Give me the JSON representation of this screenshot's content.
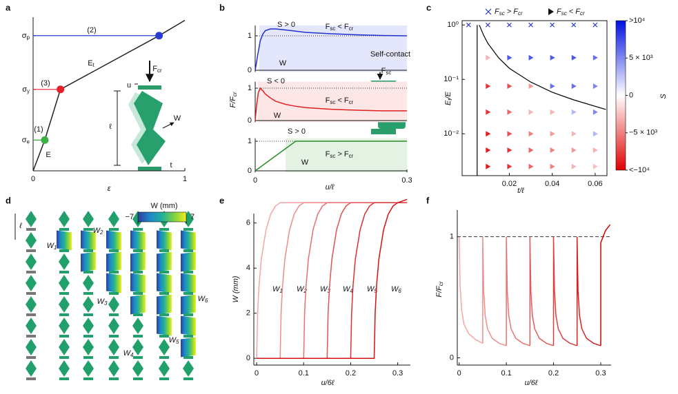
{
  "chart_data": [
    {
      "label": "a",
      "type": "line",
      "xlabel": "ε",
      "xlim": [
        0,
        1
      ],
      "ylim": [
        0,
        1
      ],
      "xticks": [
        0,
        1
      ],
      "yticks": [
        {
          "value": 0.2,
          "label": [
            {
              "text": "σ",
              "sub": "e"
            }
          ]
        },
        {
          "value": 0.53,
          "label": [
            {
              "text": "σ",
              "sub": "y"
            }
          ]
        },
        {
          "value": 0.88,
          "label": [
            {
              "text": "σ",
              "sub": "p"
            }
          ]
        }
      ],
      "series": [
        {
          "color": "#222222",
          "x": [
            0,
            0.077,
            0.18,
            0.83,
            1
          ],
          "values": [
            0,
            0.2,
            0.53,
            0.88,
            0.98
          ]
        }
      ],
      "points": [
        {
          "x": 0.077,
          "y": 0.2,
          "color": "#3cb043"
        },
        {
          "x": 0.18,
          "y": 0.53,
          "color": "#e8202a"
        },
        {
          "x": 0.83,
          "y": 0.88,
          "color": "#2a3bd6"
        }
      ],
      "annotations": [
        "(1)",
        "(2)",
        "(3)",
        "E",
        [
          {
            "text": "E",
            "sub": "t"
          }
        ],
        [
          {
            "text": "F",
            "sub": "cr"
          }
        ],
        "u",
        "ℓ",
        "W",
        "t"
      ]
    },
    {
      "label": "b",
      "type": "line",
      "xlim": [
        0,
        0.3
      ],
      "ylim": [
        -0.05,
        1.3
      ],
      "yticks": [
        0,
        1
      ],
      "hline": 1,
      "region": [
        0.008,
        0.3
      ],
      "region_color": "#e4e7fb",
      "series": [
        {
          "color": "#1f2fd0",
          "x": [
            0,
            0.005,
            0.01,
            0.015,
            0.02,
            0.03,
            0.04,
            0.06,
            0.1,
            0.15,
            0.2,
            0.25,
            0.3
          ],
          "values": [
            0,
            0.45,
            0.85,
            1.05,
            1.15,
            1.2,
            1.2,
            1.17,
            1.1,
            1.06,
            1.03,
            1.01,
            1.0
          ]
        }
      ],
      "annotations": [
        "S > 0",
        [
          {
            "text": "F",
            "sub": "sc"
          },
          {
            "text": " < F",
            "sub": "cr"
          }
        ],
        "W"
      ]
    },
    {
      "type": "line",
      "xlim": [
        0,
        0.3
      ],
      "ylim": [
        -0.05,
        1.2
      ],
      "yticks": [
        0,
        1
      ],
      "hline": 1,
      "region": [
        0.005,
        0.3
      ],
      "region_color": "#fde6e6",
      "ylabel": [
        {
          "text": "F/F",
          "sub": "cr"
        }
      ],
      "series": [
        {
          "color": "#e02020",
          "x": [
            0,
            0.003,
            0.006,
            0.01,
            0.015,
            0.02,
            0.03,
            0.04,
            0.06,
            0.08,
            0.1,
            0.15,
            0.2,
            0.25,
            0.3
          ],
          "values": [
            0,
            0.5,
            0.85,
            1.0,
            0.92,
            0.82,
            0.7,
            0.6,
            0.5,
            0.44,
            0.4,
            0.35,
            0.32,
            0.3,
            0.3
          ]
        }
      ],
      "annotations": [
        "S < 0",
        [
          {
            "text": "F",
            "sub": "sc"
          },
          {
            "text": " < F",
            "sub": "cr"
          }
        ],
        "W",
        "Self-contact",
        [
          {
            "text": "F",
            "sub": "sc"
          }
        ]
      ]
    },
    {
      "type": "line",
      "xlim": [
        0,
        0.3
      ],
      "ylim": [
        -0.05,
        1.1
      ],
      "yticks": [
        0,
        1
      ],
      "xticks": [
        0,
        0.3
      ],
      "xlabel": "u/ℓ",
      "hline": 1,
      "region": [
        0.06,
        0.3
      ],
      "region_color": "#e3f2e3",
      "series": [
        {
          "color": "#2a8a2a",
          "x": [
            0,
            0.08,
            0.1,
            0.2,
            0.3
          ],
          "values": [
            0,
            1,
            1,
            1,
            1
          ]
        }
      ],
      "annotations": [
        "S > 0",
        [
          {
            "text": "F",
            "sub": "sc"
          },
          {
            "text": " > F",
            "sub": "cr"
          }
        ],
        "W"
      ]
    },
    {
      "label": "c",
      "type": "scatter",
      "ylog": true,
      "xlabel": "t/ℓ",
      "ylabel": [
        {
          "text": "E",
          "sub": "t"
        },
        {
          "text": "/E"
        }
      ],
      "xlim": [
        -0.002,
        0.0655
      ],
      "ylim": [
        0.0017,
        1.2
      ],
      "xticks": [
        0.02,
        0.04,
        0.06
      ],
      "yticks": [
        {
          "value": 1,
          "label": "10⁰"
        },
        {
          "value": 0.1,
          "label": "10⁻¹"
        },
        {
          "value": 0.01,
          "label": "10⁻²"
        }
      ],
      "series": [
        {
          "name": [
            {
              "text": "F",
              "sub": "sc"
            },
            {
              "text": " > F",
              "sub": "cr"
            }
          ],
          "marker": "x",
          "color": "#2233cc",
          "x": [
            0.001,
            0.01,
            0.02,
            0.03,
            0.04,
            0.05,
            0.06
          ],
          "values": [
            1,
            1,
            1,
            1,
            1,
            1,
            1
          ]
        },
        {
          "name": [
            {
              "text": "F",
              "sub": "sc"
            },
            {
              "text": " < F",
              "sub": "cr"
            }
          ],
          "marker": "triangle",
          "color": "#111111",
          "x": [
            0.01,
            0.02,
            0.03,
            0.04,
            0.05,
            0.06,
            0.01,
            0.02,
            0.03,
            0.04,
            0.05,
            0.06,
            0.01,
            0.02,
            0.03,
            0.04,
            0.05,
            0.06,
            0.01,
            0.02,
            0.03,
            0.04,
            0.05,
            0.06,
            0.01,
            0.02,
            0.03,
            0.04,
            0.05,
            0.06,
            0.01,
            0.02,
            0.03,
            0.04,
            0.05,
            0.06
          ],
          "values": [
            0.25,
            0.25,
            0.25,
            0.25,
            0.25,
            0.25,
            0.075,
            0.075,
            0.075,
            0.075,
            0.075,
            0.075,
            0.025,
            0.025,
            0.025,
            0.025,
            0.025,
            0.025,
            0.01,
            0.01,
            0.01,
            0.01,
            0.01,
            0.01,
            0.005,
            0.005,
            0.005,
            0.005,
            0.005,
            0.005,
            0.0025,
            0.0025,
            0.0025,
            0.0025,
            0.0025,
            0.0025
          ],
          "S": [
            -3000,
            7000,
            7000,
            7000,
            7000,
            6000,
            -8000,
            -7000,
            -4000,
            6000,
            6000,
            5000,
            -8000,
            -6000,
            -3000,
            -3000,
            3000,
            5000,
            -9000,
            -7000,
            -5000,
            -4000,
            -3000,
            3000,
            -9000,
            -8000,
            -6000,
            -5000,
            -4000,
            -3000,
            -9000,
            -8000,
            -6000,
            -5000,
            -3000,
            -2500
          ]
        }
      ],
      "curves": [
        {
          "color": "#000000",
          "x": [
            0.006,
            0.008,
            0.01,
            0.015,
            0.02,
            0.03,
            0.04,
            0.05,
            0.065
          ],
          "values": [
            1,
            0.65,
            0.46,
            0.25,
            0.16,
            0.089,
            0.058,
            0.042,
            0.028
          ]
        },
        {
          "color": "#000000",
          "x": [
            0.005,
            0.005
          ],
          "values": [
            0.0017,
            1
          ]
        }
      ],
      "colorbar": {
        "label": "S",
        "clim": [
          -10000,
          10000
        ],
        "colors": [
          "#e00000",
          "#ffffff",
          "#0010e0"
        ],
        "ticks": [
          {
            "value": 10000,
            "label": ">10⁴"
          },
          {
            "value": 5000,
            "label": "5 × 10³"
          },
          0,
          {
            "value": -5000,
            "label": "−5 × 10³"
          },
          {
            "value": -10000,
            "label": "<−10⁴"
          }
        ]
      }
    },
    {
      "label": "e",
      "type": "line",
      "xlabel": "u/6ℓ",
      "ylabel": "W (mm)",
      "xlim": [
        -0.006,
        0.327
      ],
      "ylim": [
        -0.3,
        6.42
      ],
      "xticks": [
        0,
        0.1,
        0.2,
        0.3
      ],
      "yticks": [
        0,
        2,
        4,
        6
      ],
      "series": [
        {
          "name": [
            {
              "text": "W",
              "sub": "1"
            }
          ],
          "color": "#f4a6a6",
          "x": [
            0,
            0.002,
            0.005,
            0.01,
            0.02,
            0.03,
            0.04,
            0.05,
            0.32
          ],
          "values": [
            0,
            2.0,
            3.2,
            4.4,
            5.7,
            6.4,
            6.75,
            6.9,
            6.9
          ]
        },
        {
          "name": [
            {
              "text": "W",
              "sub": "2"
            }
          ],
          "color": "#ef8a8a",
          "x": [
            0,
            0.05,
            0.052,
            0.055,
            0.06,
            0.07,
            0.08,
            0.09,
            0.1,
            0.32
          ],
          "values": [
            0,
            0,
            2.0,
            3.2,
            4.4,
            5.7,
            6.4,
            6.75,
            6.9,
            6.9
          ]
        },
        {
          "name": [
            {
              "text": "W",
              "sub": "3"
            }
          ],
          "color": "#e96e6e",
          "x": [
            0,
            0.1,
            0.102,
            0.105,
            0.11,
            0.12,
            0.13,
            0.14,
            0.15,
            0.32
          ],
          "values": [
            0,
            0,
            2.0,
            3.2,
            4.4,
            5.7,
            6.4,
            6.75,
            6.9,
            6.9
          ]
        },
        {
          "name": [
            {
              "text": "W",
              "sub": "4"
            }
          ],
          "color": "#e35050",
          "x": [
            0,
            0.15,
            0.152,
            0.155,
            0.16,
            0.17,
            0.18,
            0.19,
            0.2,
            0.32
          ],
          "values": [
            0,
            0,
            2.0,
            3.2,
            4.4,
            5.7,
            6.4,
            6.75,
            6.9,
            6.9
          ]
        },
        {
          "name": [
            {
              "text": "W",
              "sub": "5"
            }
          ],
          "color": "#dc3030",
          "x": [
            0,
            0.2,
            0.202,
            0.205,
            0.21,
            0.22,
            0.23,
            0.24,
            0.25,
            0.32
          ],
          "values": [
            0,
            0,
            2.0,
            3.2,
            4.4,
            5.7,
            6.4,
            6.75,
            6.9,
            6.9
          ]
        },
        {
          "name": [
            {
              "text": "W",
              "sub": "6"
            }
          ],
          "color": "#d41010",
          "x": [
            0,
            0.25,
            0.252,
            0.255,
            0.26,
            0.27,
            0.28,
            0.29,
            0.3,
            0.32
          ],
          "values": [
            0,
            0,
            2.0,
            3.2,
            4.4,
            5.7,
            6.4,
            6.75,
            6.9,
            7.05
          ]
        }
      ]
    },
    {
      "label": "f",
      "type": "line",
      "xlabel": "u/6ℓ",
      "ylabel": [
        {
          "text": "F/F",
          "sub": "cr"
        }
      ],
      "xlim": [
        -0.004,
        0.322
      ],
      "ylim": [
        -0.06,
        1.22
      ],
      "xticks": [
        0,
        0.1,
        0.2,
        0.3
      ],
      "yticks": [
        0,
        1
      ],
      "hline": 1,
      "series": [
        {
          "color": "#f4a6a6",
          "x": [
            0,
            0.002,
            0.005,
            0.01,
            0.02,
            0.035,
            0.05
          ],
          "values": [
            1,
            0.6,
            0.4,
            0.28,
            0.2,
            0.15,
            0.12
          ]
        },
        {
          "color": "#f08c8c",
          "x": [
            0.05,
            0.05,
            0.052,
            0.055,
            0.06,
            0.07,
            0.085,
            0.1
          ],
          "values": [
            0.12,
            1,
            0.55,
            0.35,
            0.24,
            0.16,
            0.12,
            0.1
          ]
        },
        {
          "color": "#eb7272",
          "x": [
            0.1,
            0.1,
            0.102,
            0.105,
            0.11,
            0.12,
            0.135,
            0.15
          ],
          "values": [
            0.1,
            1,
            0.55,
            0.35,
            0.24,
            0.16,
            0.12,
            0.1
          ]
        },
        {
          "color": "#e65858",
          "x": [
            0.15,
            0.15,
            0.152,
            0.155,
            0.16,
            0.17,
            0.185,
            0.2
          ],
          "values": [
            0.1,
            1,
            0.55,
            0.35,
            0.24,
            0.16,
            0.12,
            0.1
          ]
        },
        {
          "color": "#e03c3c",
          "x": [
            0.2,
            0.2,
            0.202,
            0.205,
            0.21,
            0.22,
            0.235,
            0.25
          ],
          "values": [
            0.1,
            1,
            0.55,
            0.35,
            0.24,
            0.16,
            0.12,
            0.1
          ]
        },
        {
          "color": "#d92020",
          "x": [
            0.25,
            0.25,
            0.252,
            0.255,
            0.26,
            0.27,
            0.285,
            0.3
          ],
          "values": [
            0.1,
            1,
            0.55,
            0.35,
            0.24,
            0.16,
            0.12,
            0.1
          ]
        },
        {
          "color": "#d40000",
          "x": [
            0.3,
            0.3,
            0.305,
            0.31,
            0.32
          ],
          "values": [
            0.1,
            0.95,
            1.0,
            1.05,
            1.1
          ]
        }
      ]
    }
  ],
  "panel_d": {
    "label": "d",
    "colorbar": {
      "title": "W (mm)",
      "clim": [
        -7,
        7
      ],
      "colors": [
        "#2c3e9a",
        "#1e88c8",
        "#20b09a",
        "#80d040",
        "#f0f020"
      ],
      "ticks": [
        {
          "value": -7,
          "label": "−7"
        },
        7
      ]
    },
    "annotations": [
      "ℓ",
      [
        {
          "text": "W",
          "sub": "1"
        }
      ],
      [
        {
          "text": "W",
          "sub": "2"
        }
      ],
      [
        {
          "text": "W",
          "sub": "3"
        }
      ],
      [
        {
          "text": "W",
          "sub": "4"
        }
      ],
      [
        {
          "text": "W",
          "sub": "5"
        }
      ],
      [
        {
          "text": "W",
          "sub": "6"
        }
      ]
    ]
  }
}
